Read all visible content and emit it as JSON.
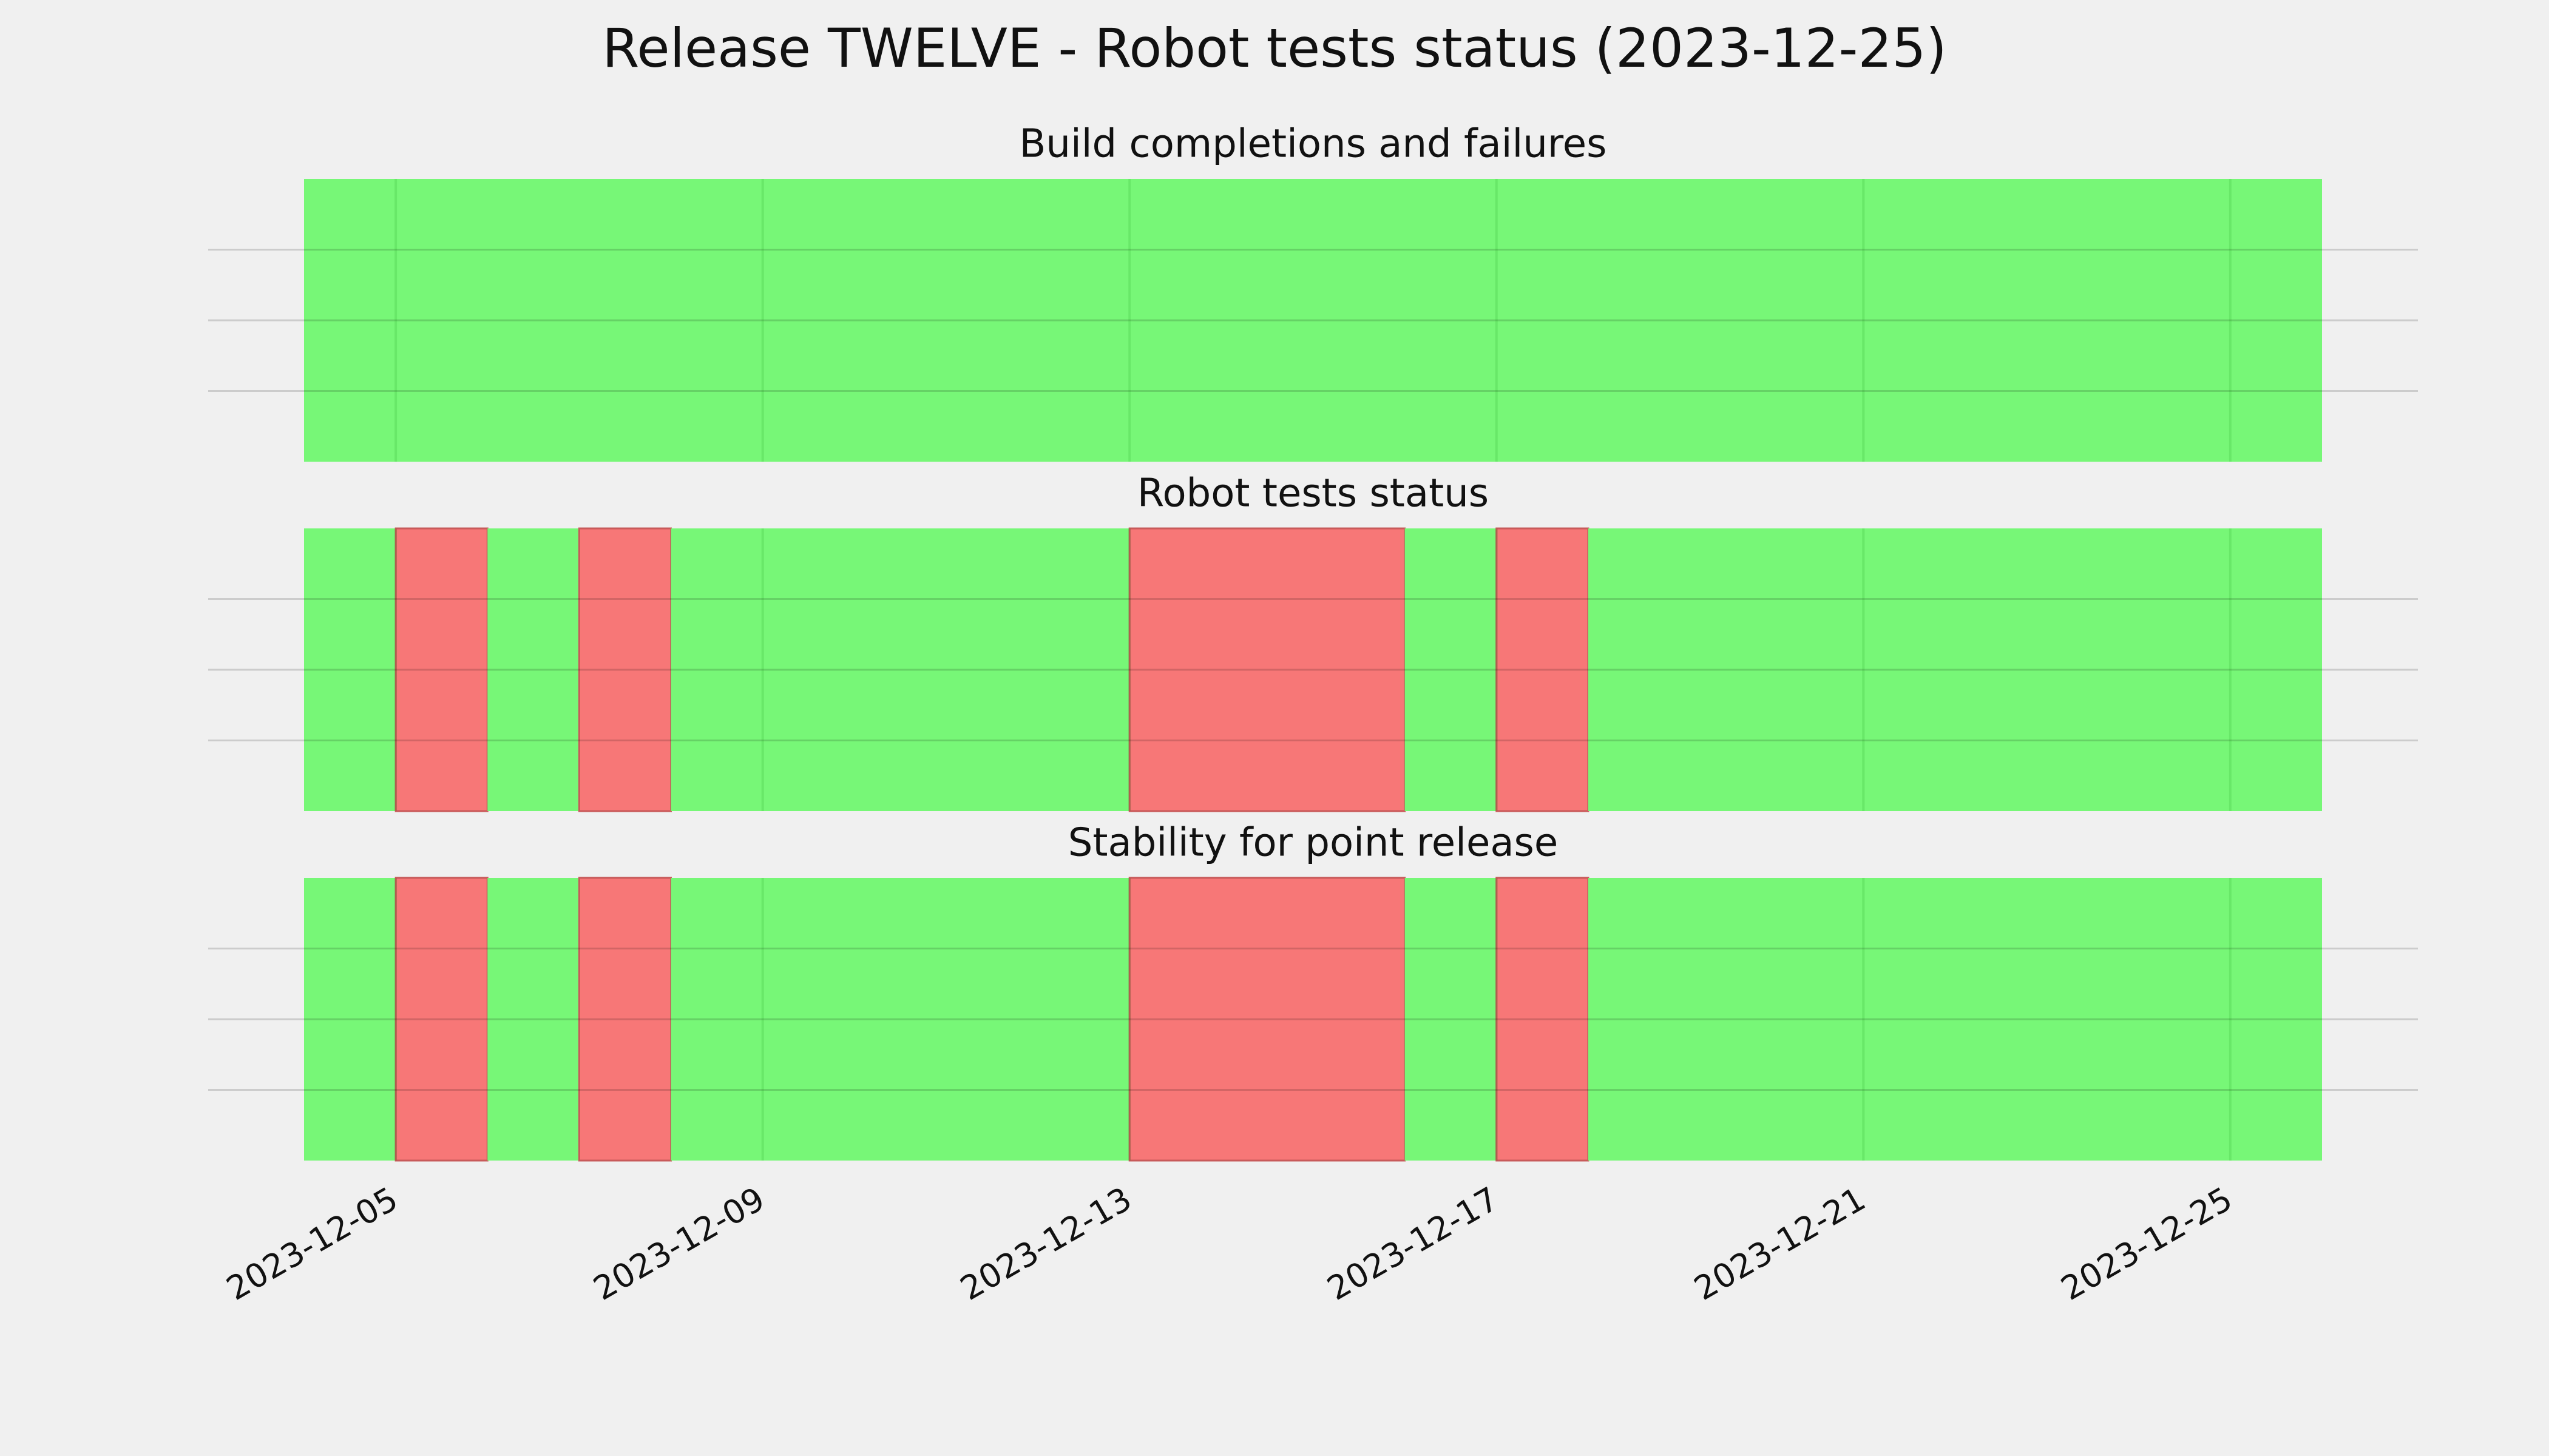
{
  "chart_data": {
    "type": "timeline",
    "title": "Release TWELVE - Robot tests status (2023-12-25)",
    "xticks": [
      "2023-12-05",
      "2023-12-09",
      "2023-12-13",
      "2023-12-17",
      "2023-12-21",
      "2023-12-25"
    ],
    "xlim": [
      "2023-12-04",
      "2023-12-26"
    ],
    "ylim": [
      0,
      1
    ],
    "yticks": [
      0.25,
      0.5,
      0.75
    ],
    "grid": true,
    "panels": [
      {
        "title": "Build completions and failures",
        "spans": [
          {
            "start": "2023-12-04",
            "end": "2023-12-26",
            "color": "#77f777"
          }
        ]
      },
      {
        "title": "Robot tests status",
        "spans": [
          {
            "start": "2023-12-04",
            "end": "2023-12-05",
            "color": "#77f777"
          },
          {
            "start": "2023-12-05",
            "end": "2023-12-06",
            "color": "#f77777"
          },
          {
            "start": "2023-12-06",
            "end": "2023-12-07",
            "color": "#77f777"
          },
          {
            "start": "2023-12-07",
            "end": "2023-12-08",
            "color": "#f77777"
          },
          {
            "start": "2023-12-08",
            "end": "2023-12-13",
            "color": "#77f777"
          },
          {
            "start": "2023-12-13",
            "end": "2023-12-16",
            "color": "#f77777"
          },
          {
            "start": "2023-12-16",
            "end": "2023-12-17",
            "color": "#77f777"
          },
          {
            "start": "2023-12-17",
            "end": "2023-12-18",
            "color": "#f77777"
          },
          {
            "start": "2023-12-18",
            "end": "2023-12-26",
            "color": "#77f777"
          }
        ]
      },
      {
        "title": "Stability for point release",
        "spans": [
          {
            "start": "2023-12-04",
            "end": "2023-12-05",
            "color": "#77f777"
          },
          {
            "start": "2023-12-05",
            "end": "2023-12-06",
            "color": "#f77777"
          },
          {
            "start": "2023-12-06",
            "end": "2023-12-07",
            "color": "#77f777"
          },
          {
            "start": "2023-12-07",
            "end": "2023-12-08",
            "color": "#f77777"
          },
          {
            "start": "2023-12-08",
            "end": "2023-12-13",
            "color": "#77f777"
          },
          {
            "start": "2023-12-13",
            "end": "2023-12-16",
            "color": "#f77777"
          },
          {
            "start": "2023-12-16",
            "end": "2023-12-17",
            "color": "#77f777"
          },
          {
            "start": "2023-12-17",
            "end": "2023-12-18",
            "color": "#f77777"
          },
          {
            "start": "2023-12-18",
            "end": "2023-12-26",
            "color": "#77f777"
          }
        ]
      }
    ]
  }
}
